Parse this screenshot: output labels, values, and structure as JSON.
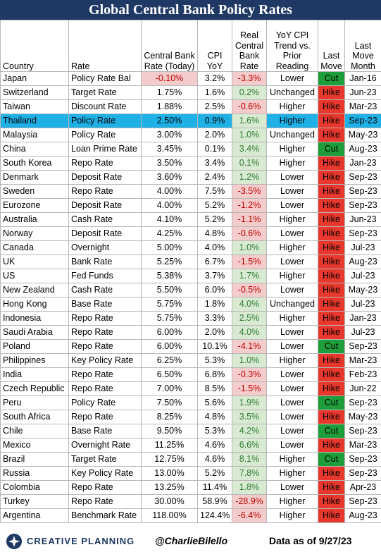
{
  "title": "Global Central Bank Policy Rates",
  "headers": [
    "Country",
    "Rate",
    "Central Bank Rate (Today)",
    "CPI YoY",
    "Real Central Bank Rate",
    "YoY CPI Trend vs. Prior Reading",
    "Last Move",
    "Last Move Month"
  ],
  "highlight_color": "#1fb0e6",
  "colors": {
    "header": "#1f3864",
    "hike": "#e8372c",
    "cut": "#1e9e3a",
    "neg_bg": "#f4cccc",
    "neg_text": "#c00000",
    "pos_bg": "#d9ead3",
    "pos_text": "#2e7d32"
  },
  "chart_data": {
    "type": "table",
    "title": "Global Central Bank Policy Rates",
    "columns": [
      "Country",
      "Rate",
      "Central Bank Rate (Today)",
      "CPI YoY",
      "Real Central Bank Rate",
      "YoY CPI Trend vs. Prior Reading",
      "Last Move",
      "Last Move Month"
    ],
    "rows": [
      [
        "Japan",
        "Policy Rate Bal",
        "-0.10%",
        "3.2%",
        "-3.3%",
        "Lower",
        "Cut",
        "Jan-16"
      ],
      [
        "Switzerland",
        "Target Rate",
        "1.75%",
        "1.6%",
        "0.2%",
        "Unchanged",
        "Hike",
        "Jun-23"
      ],
      [
        "Taiwan",
        "Discount Rate",
        "1.88%",
        "2.5%",
        "-0.6%",
        "Higher",
        "Hike",
        "Mar-23"
      ],
      [
        "Thailand",
        "Policy Rate",
        "2.50%",
        "0.9%",
        "1.6%",
        "Higher",
        "Hike",
        "Sep-23"
      ],
      [
        "Malaysia",
        "Policy Rate",
        "3.00%",
        "2.0%",
        "1.0%",
        "Unchanged",
        "Hike",
        "May-23"
      ],
      [
        "China",
        "Loan Prime Rate",
        "3.45%",
        "0.1%",
        "3.4%",
        "Higher",
        "Cut",
        "Aug-23"
      ],
      [
        "South Korea",
        "Repo Rate",
        "3.50%",
        "3.4%",
        "0.1%",
        "Higher",
        "Hike",
        "Jan-23"
      ],
      [
        "Denmark",
        "Deposit Rate",
        "3.60%",
        "2.4%",
        "1.2%",
        "Lower",
        "Hike",
        "Sep-23"
      ],
      [
        "Sweden",
        "Repo Rate",
        "4.00%",
        "7.5%",
        "-3.5%",
        "Lower",
        "Hike",
        "Sep-23"
      ],
      [
        "Eurozone",
        "Deposit Rate",
        "4.00%",
        "5.2%",
        "-1.2%",
        "Lower",
        "Hike",
        "Sep-23"
      ],
      [
        "Australia",
        "Cash Rate",
        "4.10%",
        "5.2%",
        "-1.1%",
        "Higher",
        "Hike",
        "Jun-23"
      ],
      [
        "Norway",
        "Deposit Rate",
        "4.25%",
        "4.8%",
        "-0.6%",
        "Lower",
        "Hike",
        "Sep-23"
      ],
      [
        "Canada",
        "Overnight",
        "5.00%",
        "4.0%",
        "1.0%",
        "Higher",
        "Hike",
        "Jul-23"
      ],
      [
        "UK",
        "Bank Rate",
        "5.25%",
        "6.7%",
        "-1.5%",
        "Lower",
        "Hike",
        "Aug-23"
      ],
      [
        "US",
        "Fed Funds",
        "5.38%",
        "3.7%",
        "1.7%",
        "Higher",
        "Hike",
        "Jul-23"
      ],
      [
        "New Zealand",
        "Cash Rate",
        "5.50%",
        "6.0%",
        "-0.5%",
        "Lower",
        "Hike",
        "May-23"
      ],
      [
        "Hong Kong",
        "Base Rate",
        "5.75%",
        "1.8%",
        "4.0%",
        "Unchanged",
        "Hike",
        "Jul-23"
      ],
      [
        "Indonesia",
        "Repo Rate",
        "5.75%",
        "3.3%",
        "2.5%",
        "Higher",
        "Hike",
        "Jan-23"
      ],
      [
        "Saudi Arabia",
        "Repo Rate",
        "6.00%",
        "2.0%",
        "4.0%",
        "Lower",
        "Hike",
        "Jul-23"
      ],
      [
        "Poland",
        "Repo Rate",
        "6.00%",
        "10.1%",
        "-4.1%",
        "Lower",
        "Cut",
        "Sep-23"
      ],
      [
        "Philippines",
        "Key Policy Rate",
        "6.25%",
        "5.3%",
        "1.0%",
        "Higher",
        "Hike",
        "Mar-23"
      ],
      [
        "India",
        "Repo Rate",
        "6.50%",
        "6.8%",
        "-0.3%",
        "Lower",
        "Hike",
        "Feb-23"
      ],
      [
        "Czech Republic",
        "Repo Rate",
        "7.00%",
        "8.5%",
        "-1.5%",
        "Lower",
        "Hike",
        "Jun-22"
      ],
      [
        "Peru",
        "Policy Rate",
        "7.50%",
        "5.6%",
        "1.9%",
        "Lower",
        "Cut",
        "Sep-23"
      ],
      [
        "South Africa",
        "Repo Rate",
        "8.25%",
        "4.8%",
        "3.5%",
        "Lower",
        "Hike",
        "May-23"
      ],
      [
        "Chile",
        "Base Rate",
        "9.50%",
        "5.3%",
        "4.2%",
        "Lower",
        "Cut",
        "Sep-23"
      ],
      [
        "Mexico",
        "Overnight Rate",
        "11.25%",
        "4.6%",
        "6.6%",
        "Lower",
        "Hike",
        "Mar-23"
      ],
      [
        "Brazil",
        "Target Rate",
        "12.75%",
        "4.6%",
        "8.1%",
        "Higher",
        "Cut",
        "Sep-23"
      ],
      [
        "Russia",
        "Key Policy Rate",
        "13.00%",
        "5.2%",
        "7.8%",
        "Higher",
        "Hike",
        "Sep-23"
      ],
      [
        "Colombia",
        "Repo Rate",
        "13.25%",
        "11.4%",
        "1.8%",
        "Lower",
        "Hike",
        "Apr-23"
      ],
      [
        "Turkey",
        "Repo Rate",
        "30.00%",
        "58.9%",
        "-28.9%",
        "Higher",
        "Hike",
        "Sep-23"
      ],
      [
        "Argentina",
        "Benchmark Rate",
        "118.00%",
        "124.4%",
        "-6.4%",
        "Higher",
        "Hike",
        "Aug-23"
      ]
    ],
    "highlight_row": "Thailand"
  },
  "footer": {
    "brand": "CREATIVE PLANNING",
    "handle": "@CharlieBilello",
    "as_of": "Data as of 9/27/23"
  }
}
